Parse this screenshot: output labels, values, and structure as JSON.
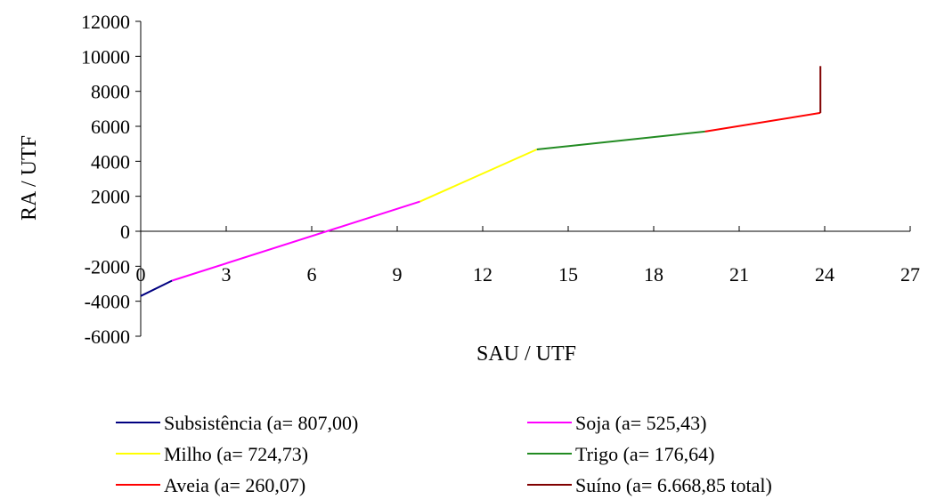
{
  "chart_data": {
    "type": "line",
    "xlabel": "SAU / UTF",
    "ylabel": "RA / UTF",
    "xlim": [
      0,
      27
    ],
    "ylim": [
      -6000,
      12000
    ],
    "x_ticks": [
      0,
      3,
      6,
      9,
      12,
      15,
      18,
      21,
      24,
      27
    ],
    "y_ticks": [
      -6000,
      -4000,
      -2000,
      0,
      2000,
      4000,
      6000,
      8000,
      10000,
      12000
    ],
    "grid": false,
    "legend_position": "bottom",
    "series": [
      {
        "name": "Subsistência (a= 807,00)",
        "color": "#000080",
        "points": [
          [
            0,
            -3700
          ],
          [
            1.1,
            -2820
          ]
        ]
      },
      {
        "name": "Soja (a= 525,43)",
        "color": "#ff00ff",
        "points": [
          [
            1.1,
            -2820
          ],
          [
            9.8,
            1700
          ]
        ]
      },
      {
        "name": "Milho (a= 724,73)",
        "color": "#ffff00",
        "points": [
          [
            9.8,
            1700
          ],
          [
            13.9,
            4680
          ]
        ]
      },
      {
        "name": "Trigo (a= 176,64)",
        "color": "#228b22",
        "points": [
          [
            13.9,
            4680
          ],
          [
            19.8,
            5700
          ]
        ]
      },
      {
        "name": "Aveia (a= 260,07)",
        "color": "#ff0000",
        "points": [
          [
            19.8,
            5700
          ],
          [
            23.85,
            6770
          ]
        ]
      },
      {
        "name": "Suíno (a= 6.668,85 total)",
        "color": "#800000",
        "points": [
          [
            23.85,
            6770
          ],
          [
            23.85,
            9440
          ]
        ]
      }
    ]
  }
}
